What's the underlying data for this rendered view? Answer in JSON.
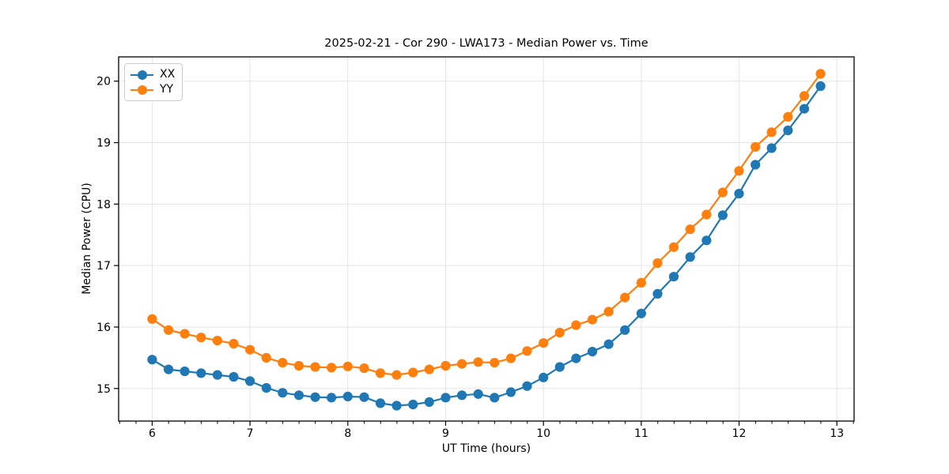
{
  "figure": {
    "background_color": "#ffffff",
    "text_color": "#000000",
    "spine_color": "#000000",
    "grid_color": "#e5e5e5"
  },
  "chart_data": {
    "type": "line",
    "title": "2025-02-21 - Cor 290 - LWA173 - Median Power vs. Time",
    "xlabel": "UT Time (hours)",
    "ylabel": "Median Power (CPU)",
    "xlim": [
      5.657,
      13.176
    ],
    "ylim": [
      14.47,
      20.395
    ],
    "xticks": [
      6,
      7,
      8,
      9,
      10,
      11,
      12,
      13
    ],
    "yticks": [
      15,
      16,
      17,
      18,
      19,
      20
    ],
    "x_minor_tick_step": 0.1667,
    "grid": true,
    "legend_position": "upper-left",
    "marker": "circle",
    "x": [
      6.0,
      6.167,
      6.333,
      6.5,
      6.667,
      6.833,
      7.0,
      7.167,
      7.333,
      7.5,
      7.667,
      7.833,
      8.0,
      8.167,
      8.333,
      8.5,
      8.667,
      8.833,
      9.0,
      9.167,
      9.333,
      9.5,
      9.667,
      9.833,
      10.0,
      10.167,
      10.333,
      10.5,
      10.667,
      10.833,
      11.0,
      11.167,
      11.333,
      11.5,
      11.667,
      11.833,
      12.0,
      12.167,
      12.333,
      12.5,
      12.667,
      12.833
    ],
    "series": [
      {
        "name": "XX",
        "color": "#1f77b4",
        "values": [
          15.47,
          15.31,
          15.28,
          15.25,
          15.22,
          15.19,
          15.12,
          15.01,
          14.93,
          14.89,
          14.86,
          14.85,
          14.87,
          14.86,
          14.76,
          14.72,
          14.74,
          14.78,
          14.85,
          14.89,
          14.91,
          14.85,
          14.94,
          15.04,
          15.18,
          15.35,
          15.49,
          15.6,
          15.72,
          15.95,
          16.22,
          16.54,
          16.82,
          17.14,
          17.41,
          17.82,
          18.17,
          18.64,
          18.91,
          19.2,
          19.55,
          19.92
        ]
      },
      {
        "name": "YY",
        "color": "#ff7f0e",
        "values": [
          16.13,
          15.95,
          15.89,
          15.83,
          15.78,
          15.73,
          15.63,
          15.5,
          15.42,
          15.37,
          15.35,
          15.34,
          15.36,
          15.33,
          15.25,
          15.22,
          15.26,
          15.31,
          15.37,
          15.4,
          15.43,
          15.42,
          15.49,
          15.61,
          15.74,
          15.91,
          16.03,
          16.12,
          16.25,
          16.48,
          16.72,
          17.04,
          17.3,
          17.59,
          17.83,
          18.19,
          18.54,
          18.93,
          19.17,
          19.42,
          19.76,
          20.12
        ]
      }
    ]
  }
}
